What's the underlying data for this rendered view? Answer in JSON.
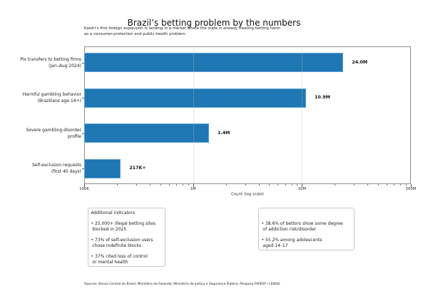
{
  "figure": {
    "title": "Brazil’s betting problem by the numbers",
    "subtitle": "Kalshi’s first foreign expansion is landing in a market where the state is already treating betting harm\nas a consumer-protection and public-health problem.",
    "sources": "Sources: Banco Central do Brasil; Ministério da Fazenda; Ministério da Justiça e Segurança Pública; Pesquisa FAPESP / LENAD."
  },
  "chart_data": {
    "type": "bar",
    "orientation": "horizontal",
    "title": "Brazil’s betting problem by the numbers",
    "subtitle": "Kalshi’s first foreign expansion is landing in a market where the state is already treating betting harm as a consumer-protection and public-health problem.",
    "categories": [
      "Pix transfers to betting firms\n(Jan–Aug 2024)",
      "Harmful gambling behavior\n(Brazilians age 14+)",
      "Severe gambling-disorder\nprofile",
      "Self-exclusion requests\n(first 40 days)"
    ],
    "values": [
      24000000,
      10900000,
      1400000,
      217000
    ],
    "value_labels": [
      "24.0M",
      "10.9M",
      "1.4M",
      "217K+"
    ],
    "xlabel": "Count (log scale)",
    "ylabel": "",
    "xscale": "log",
    "xlim": [
      100000,
      100000000
    ],
    "xticks": [
      100000,
      1000000,
      10000000,
      100000000
    ],
    "xtick_labels": [
      "100K",
      "1M",
      "10M",
      "100M"
    ],
    "grid": "x-major",
    "legend": null,
    "bar_color": "#1f77b4"
  },
  "annotations": {
    "left_box": {
      "title": "Additional indicators",
      "bullets": [
        "• 25,000+ illegal betting sites\n blocked in 2025",
        "• 73% of self-exclusion users\n chose indefinite blocks",
        "• 37% cited loss of control\n or mental health"
      ]
    },
    "right_box": {
      "title": "",
      "bullets": [
        "• 38.6% of bettors show some degree\n of addiction risk/disorder",
        "• 55.2% among adolescents\n aged 14–17"
      ]
    }
  }
}
